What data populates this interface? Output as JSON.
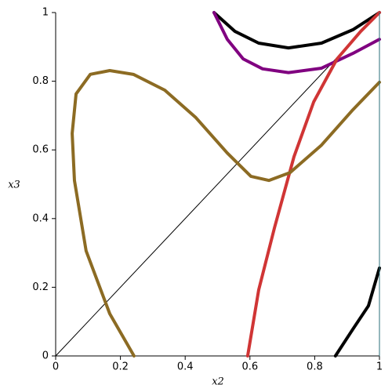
{
  "chart_data": {
    "type": "line",
    "x_label": "x2",
    "y_label": "x3",
    "xlim": [
      0,
      1
    ],
    "ylim": [
      0,
      1
    ],
    "xticks": [
      0,
      0.2,
      0.4,
      0.6,
      0.8,
      1
    ],
    "yticks": [
      0,
      0.2,
      0.4,
      0.6,
      0.8,
      1
    ],
    "series": [
      {
        "color": "#000000",
        "width": 1,
        "x": [
          0,
          1
        ],
        "values": [
          0,
          1
        ]
      },
      {
        "color": "#000000",
        "width": 4,
        "x": [
          0.489,
          0.554,
          0.627,
          0.719,
          0.821,
          0.918,
          1
        ],
        "values": [
          1,
          0.945,
          0.911,
          0.897,
          0.911,
          0.95,
          1
        ]
      },
      {
        "color": "#800080",
        "width": 4,
        "x": [
          0.489,
          0.53,
          0.579,
          0.639,
          0.719,
          0.821,
          0.918,
          1
        ],
        "values": [
          1,
          0.922,
          0.865,
          0.836,
          0.825,
          0.838,
          0.881,
          0.922
        ]
      },
      {
        "color": "#d03535",
        "width": 4,
        "x": [
          0.593,
          0.627,
          0.676,
          0.736,
          0.797,
          0.869,
          0.942,
          1
        ],
        "values": [
          0,
          0.192,
          0.374,
          0.58,
          0.74,
          0.865,
          0.945,
          1
        ]
      },
      {
        "color": "#8c6b23",
        "width": 4,
        "x": [
          0.242,
          0.167,
          0.094,
          0.058,
          0.051,
          0.063,
          0.107,
          0.167,
          0.24,
          0.337,
          0.433,
          0.53,
          0.603,
          0.659,
          0.724,
          0.821,
          0.918,
          1
        ],
        "values": [
          0,
          0.123,
          0.306,
          0.511,
          0.648,
          0.763,
          0.82,
          0.831,
          0.82,
          0.774,
          0.694,
          0.591,
          0.523,
          0.511,
          0.534,
          0.614,
          0.717,
          0.797
        ]
      },
      {
        "color": "#000000",
        "width": 4,
        "x": [
          0.864,
          0.918,
          0.966,
          1
        ],
        "values": [
          0,
          0.078,
          0.146,
          0.256
        ]
      },
      {
        "color": "#2a6f7a",
        "width": 1,
        "x": [
          1,
          1
        ],
        "values": [
          0,
          1
        ]
      }
    ]
  }
}
